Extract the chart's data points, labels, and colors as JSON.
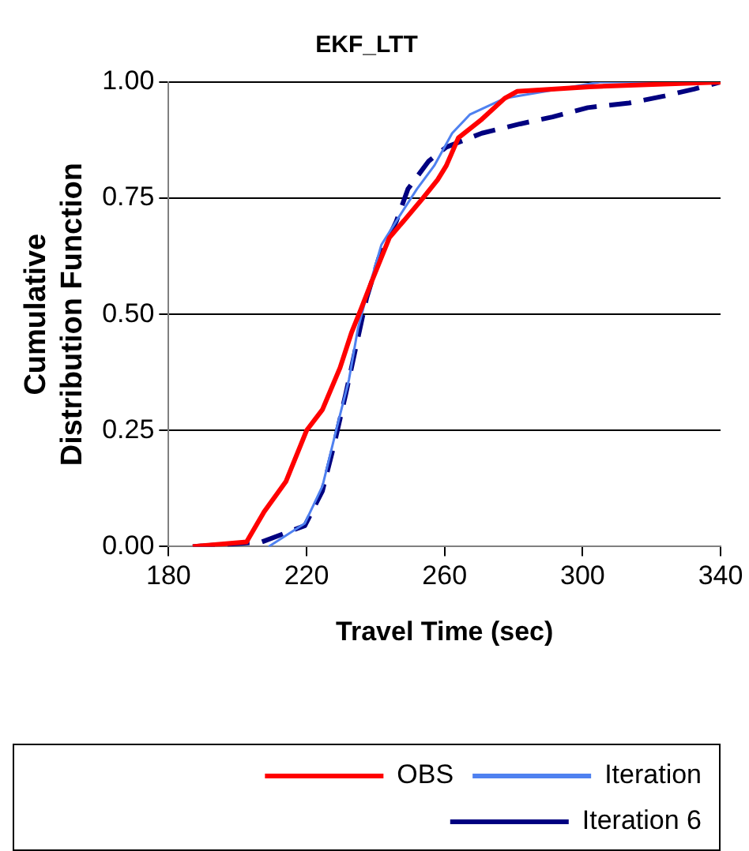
{
  "chart_data": {
    "type": "line",
    "title": "EKF_LTT",
    "xlabel": "Travel Time (sec)",
    "ylabel": "Cumulative Distribution Function",
    "xlim": [
      180,
      340
    ],
    "xticks": [
      180,
      220,
      260,
      300,
      340
    ],
    "ylim": [
      0,
      1
    ],
    "yticks": [
      {
        "value": 0,
        "label": "0.00"
      },
      {
        "value": 0.25,
        "label": "0.25"
      },
      {
        "value": 0.5,
        "label": "0.50"
      },
      {
        "value": 0.75,
        "label": "0.75"
      },
      {
        "value": 1,
        "label": "1.00"
      }
    ],
    "grid": "y",
    "legend": "bottom",
    "marker": "none",
    "series": [
      {
        "name": "OBS",
        "color": "#ff0000",
        "line_style": "solid",
        "x": [
          187,
          202.6,
          207.7,
          214,
          220,
          224.6,
          229.7,
          233,
          235.7,
          239,
          244,
          248.6,
          253.7,
          258,
          260.5,
          264,
          270.8,
          277.4,
          281,
          302,
          340
        ],
        "values": [
          0,
          0.01,
          0.075,
          0.14,
          0.25,
          0.295,
          0.385,
          0.46,
          0.51,
          0.573,
          0.665,
          0.705,
          0.75,
          0.79,
          0.82,
          0.88,
          0.92,
          0.965,
          0.98,
          0.99,
          1
        ]
      },
      {
        "name": "Iteration",
        "color": "#4f81f0",
        "line_style": "solid",
        "x": [
          209,
          219.5,
          224.6,
          228.9,
          232.3,
          234.9,
          237.4,
          241.7,
          246.8,
          252,
          257,
          262.2,
          267.3,
          277.4,
          305,
          340
        ],
        "values": [
          0,
          0.05,
          0.13,
          0.26,
          0.36,
          0.47,
          0.54,
          0.65,
          0.71,
          0.77,
          0.82,
          0.89,
          0.93,
          0.965,
          1,
          1
        ]
      },
      {
        "name": "Iteration 6",
        "color": "#000080",
        "line_style": "dashed",
        "x": [
          187,
          207,
          219.5,
          224.6,
          228,
          231.4,
          234.9,
          237.4,
          240.9,
          246,
          249.4,
          255.4,
          260.5,
          270.8,
          281.9,
          291.3,
          301.5,
          313.5,
          323.7,
          332.3,
          340
        ],
        "values": [
          0,
          0.01,
          0.045,
          0.12,
          0.22,
          0.33,
          0.45,
          0.535,
          0.62,
          0.7,
          0.77,
          0.83,
          0.86,
          0.89,
          0.91,
          0.925,
          0.945,
          0.955,
          0.97,
          0.985,
          1
        ]
      }
    ]
  }
}
